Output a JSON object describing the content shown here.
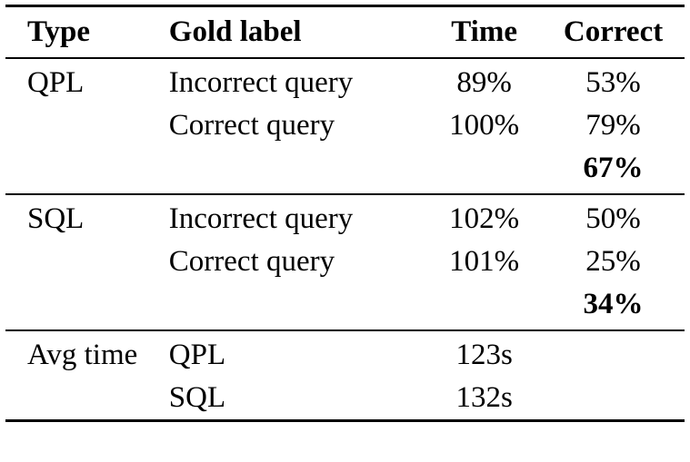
{
  "page": {
    "background": "#ffffff",
    "text_color": "#000000",
    "rule_color": "#000000"
  },
  "table": {
    "headers": {
      "type": "Type",
      "gold_label": "Gold label",
      "time": "Time",
      "correct": "Correct"
    },
    "sections": [
      {
        "name": "QPL",
        "rows": [
          {
            "type": "QPL",
            "gold_label": "Incorrect query",
            "time": "89%",
            "correct": "53%"
          },
          {
            "type": "",
            "gold_label": "Correct query",
            "time": "100%",
            "correct": "79%"
          },
          {
            "type": "",
            "gold_label": "",
            "time": "",
            "correct": "67%"
          }
        ]
      },
      {
        "name": "SQL",
        "rows": [
          {
            "type": "SQL",
            "gold_label": "Incorrect query",
            "time": "102%",
            "correct": "50%"
          },
          {
            "type": "",
            "gold_label": "Correct query",
            "time": "101%",
            "correct": "25%"
          },
          {
            "type": "",
            "gold_label": "",
            "time": "",
            "correct": "34%"
          }
        ]
      },
      {
        "name": "Avg time",
        "rows": [
          {
            "type": "Avg time",
            "gold_label": "QPL",
            "time": "123s",
            "correct": ""
          },
          {
            "type": "",
            "gold_label": "SQL",
            "time": "132s",
            "correct": ""
          }
        ]
      }
    ]
  }
}
